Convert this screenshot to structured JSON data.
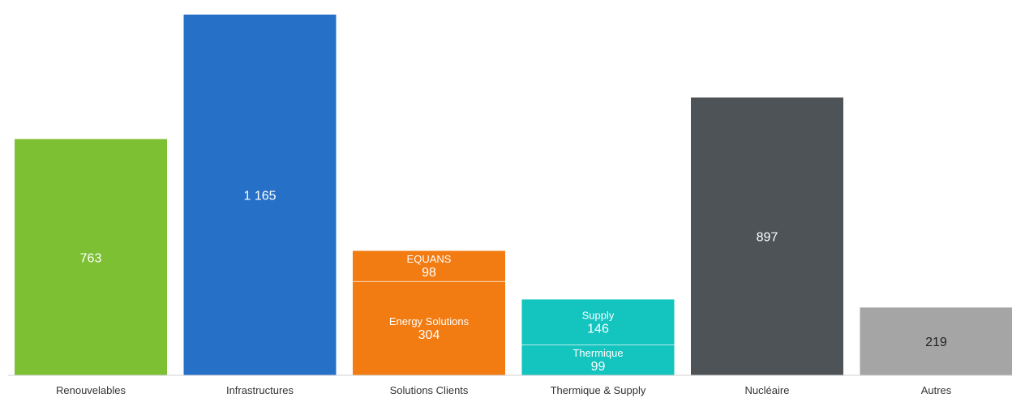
{
  "chart_data": {
    "type": "bar",
    "stacked": true,
    "title": "",
    "xlabel": "",
    "ylabel": "",
    "ylim": [
      0,
      1165
    ],
    "grid": false,
    "legend": "none",
    "categories": [
      "Renouvelables",
      "Infrastructures",
      "Solutions Clients",
      "Thermique & Supply",
      "Nucléaire",
      "Autres"
    ],
    "bars": [
      {
        "category": "Renouvelables",
        "segments": [
          {
            "label": "",
            "value": 763,
            "display": "763",
            "color": "#7dc034"
          }
        ]
      },
      {
        "category": "Infrastructures",
        "segments": [
          {
            "label": "",
            "value": 1165,
            "display": "1 165",
            "color": "#2770c8"
          }
        ]
      },
      {
        "category": "Solutions Clients",
        "segments": [
          {
            "label": "Energy Solutions",
            "value": 304,
            "display": "304",
            "color": "#f27b12"
          },
          {
            "label": "EQUANS",
            "value": 98,
            "display": "98",
            "color": "#f27b12"
          }
        ]
      },
      {
        "category": "Thermique & Supply",
        "segments": [
          {
            "label": "Thermique",
            "value": 99,
            "display": "99",
            "color": "#13c4bf"
          },
          {
            "label": "Supply",
            "value": 146,
            "display": "146",
            "color": "#13c4bf"
          }
        ]
      },
      {
        "category": "Nucléaire",
        "segments": [
          {
            "label": "",
            "value": 897,
            "display": "897",
            "color": "#4e5358"
          }
        ]
      },
      {
        "category": "Autres",
        "segments": [
          {
            "label": "",
            "value": 219,
            "display": "219",
            "color": "#a5a5a5",
            "text_color": "#222222"
          }
        ]
      }
    ]
  }
}
